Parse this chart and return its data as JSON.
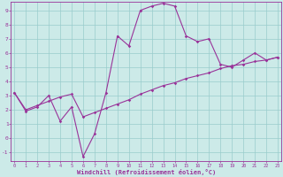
{
  "xlabel": "Windchill (Refroidissement éolien,°C)",
  "bg_color": "#cceae8",
  "line_color": "#993399",
  "grid_color": "#99cccc",
  "xlim": [
    -0.3,
    23.3
  ],
  "ylim": [
    -1.6,
    9.6
  ],
  "xticks": [
    0,
    1,
    2,
    3,
    4,
    5,
    6,
    7,
    8,
    9,
    10,
    11,
    12,
    13,
    14,
    15,
    16,
    17,
    18,
    19,
    20,
    21,
    22,
    23
  ],
  "yticks": [
    -1,
    0,
    1,
    2,
    3,
    4,
    5,
    6,
    7,
    8,
    9
  ],
  "curve1_x": [
    0,
    1,
    2,
    3,
    4,
    5,
    6,
    7,
    8,
    9,
    10,
    11,
    12,
    13,
    14,
    15,
    16,
    17,
    18,
    19,
    20,
    21,
    22,
    23
  ],
  "curve1_y": [
    3.2,
    1.9,
    2.2,
    3.0,
    1.2,
    2.2,
    -1.3,
    0.3,
    3.2,
    7.2,
    6.5,
    9.0,
    9.3,
    9.5,
    9.3,
    7.2,
    6.8,
    7.0,
    5.2,
    5.0,
    5.5,
    6.0,
    5.5,
    5.7
  ],
  "curve2_x": [
    0,
    1,
    2,
    3,
    4,
    5,
    6,
    7,
    8,
    9,
    10,
    11,
    12,
    13,
    14,
    15,
    16,
    17,
    18,
    19,
    20,
    21,
    22,
    23
  ],
  "curve2_y": [
    3.2,
    2.0,
    2.3,
    2.6,
    2.9,
    3.1,
    1.5,
    1.8,
    2.1,
    2.4,
    2.7,
    3.1,
    3.4,
    3.7,
    3.9,
    4.2,
    4.4,
    4.6,
    4.9,
    5.1,
    5.2,
    5.4,
    5.5,
    5.7
  ]
}
